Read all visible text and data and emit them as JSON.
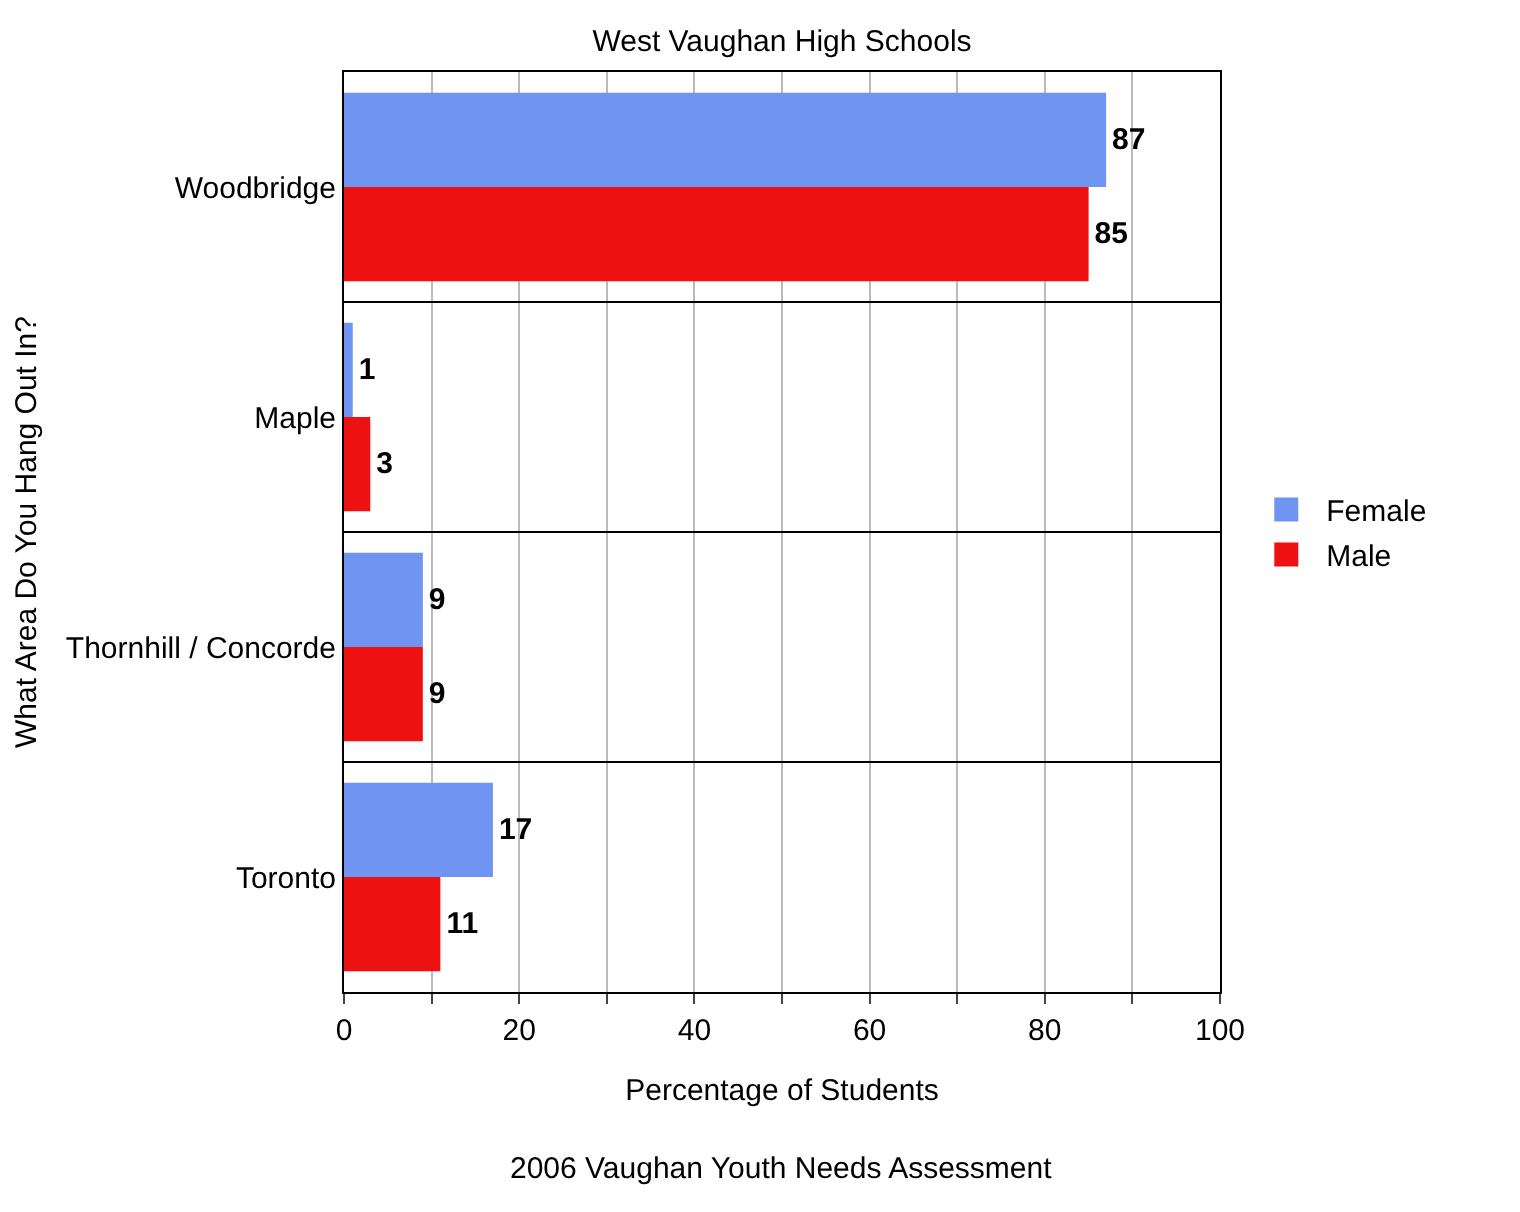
{
  "chart_data": {
    "type": "bar",
    "orientation": "horizontal",
    "title": "West Vaughan High Schools",
    "xlabel": "Percentage of Students",
    "ylabel": "What Area Do You Hang Out In?",
    "categories": [
      "Woodbridge",
      "Maple",
      "Thornhill / Concorde",
      "Toronto"
    ],
    "series": [
      {
        "name": "Female",
        "color": "#6f94f2",
        "values": [
          87,
          1,
          9,
          17
        ]
      },
      {
        "name": "Male",
        "color": "#ee1111",
        "values": [
          85,
          3,
          9,
          11
        ]
      }
    ],
    "xlim": [
      0,
      100
    ],
    "xticks": [
      0,
      {
        "value": 10,
        "label": null
      },
      20,
      {
        "value": 30,
        "label": null
      },
      40,
      {
        "value": 50,
        "label": null
      },
      60,
      {
        "value": 70,
        "label": null
      },
      80,
      {
        "value": 90,
        "label": null
      },
      100
    ],
    "grid": true,
    "legend": "right",
    "data_labels": true,
    "annotations": [
      "2006 Vaughan Youth Needs Assessment"
    ]
  }
}
